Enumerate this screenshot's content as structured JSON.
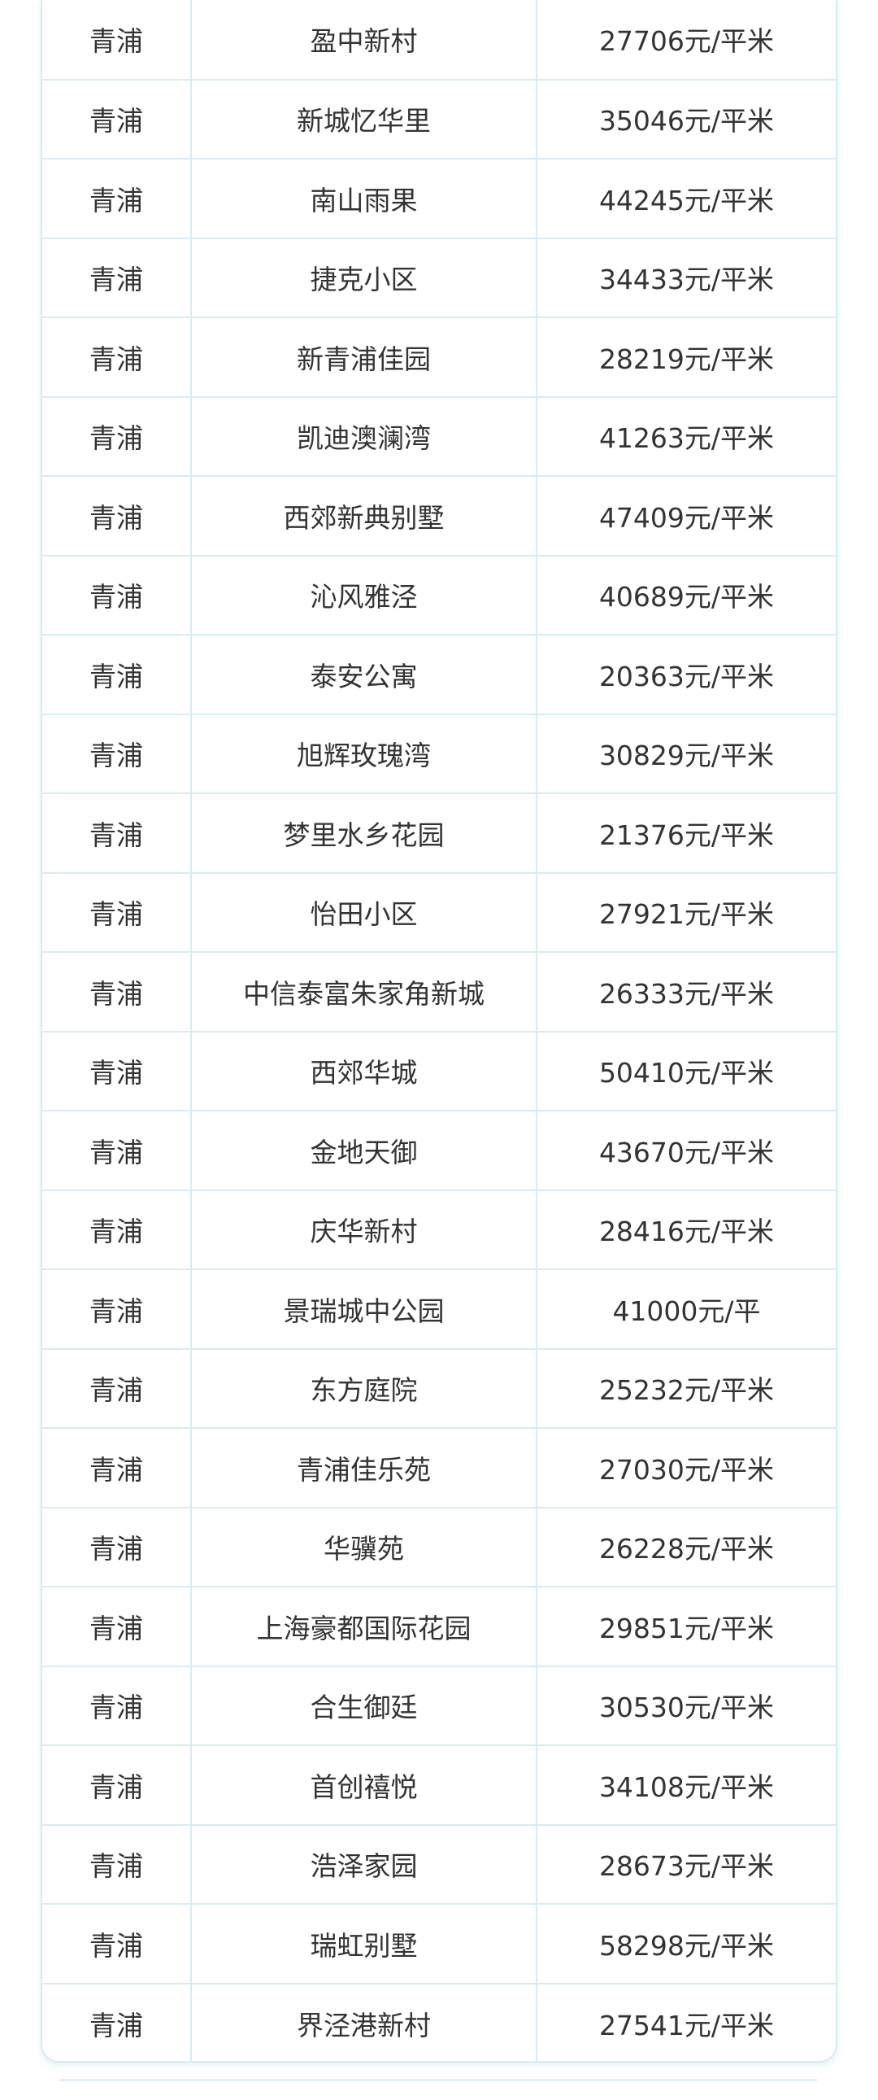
{
  "table": {
    "rows": [
      {
        "district": "青浦",
        "name": "盈中新村",
        "price": "27706元/平米"
      },
      {
        "district": "青浦",
        "name": "新城忆华里",
        "price": "35046元/平米"
      },
      {
        "district": "青浦",
        "name": "南山雨果",
        "price": "44245元/平米"
      },
      {
        "district": "青浦",
        "name": "捷克小区",
        "price": "34433元/平米"
      },
      {
        "district": "青浦",
        "name": "新青浦佳园",
        "price": "28219元/平米"
      },
      {
        "district": "青浦",
        "name": "凯迪澳澜湾",
        "price": "41263元/平米"
      },
      {
        "district": "青浦",
        "name": "西郊新典别墅",
        "price": "47409元/平米"
      },
      {
        "district": "青浦",
        "name": "沁风雅泾",
        "price": "40689元/平米"
      },
      {
        "district": "青浦",
        "name": "泰安公寓",
        "price": "20363元/平米"
      },
      {
        "district": "青浦",
        "name": "旭辉玫瑰湾",
        "price": "30829元/平米"
      },
      {
        "district": "青浦",
        "name": "梦里水乡花园",
        "price": "21376元/平米"
      },
      {
        "district": "青浦",
        "name": "怡田小区",
        "price": "27921元/平米"
      },
      {
        "district": "青浦",
        "name": "中信泰富朱家角新城",
        "price": "26333元/平米"
      },
      {
        "district": "青浦",
        "name": "西郊华城",
        "price": "50410元/平米"
      },
      {
        "district": "青浦",
        "name": "金地天御",
        "price": "43670元/平米"
      },
      {
        "district": "青浦",
        "name": "庆华新村",
        "price": "28416元/平米"
      },
      {
        "district": "青浦",
        "name": "景瑞城中公园",
        "price": "41000元/平"
      },
      {
        "district": "青浦",
        "name": "东方庭院",
        "price": "25232元/平米"
      },
      {
        "district": "青浦",
        "name": "青浦佳乐苑",
        "price": "27030元/平米"
      },
      {
        "district": "青浦",
        "name": "华骥苑",
        "price": "26228元/平米"
      },
      {
        "district": "青浦",
        "name": "上海豪都国际花园",
        "price": "29851元/平米"
      },
      {
        "district": "青浦",
        "name": "合生御廷",
        "price": "30530元/平米"
      },
      {
        "district": "青浦",
        "name": "首创禧悦",
        "price": "34108元/平米"
      },
      {
        "district": "青浦",
        "name": "浩泽家园",
        "price": "28673元/平米"
      },
      {
        "district": "青浦",
        "name": "瑞虹别墅",
        "price": "58298元/平米"
      },
      {
        "district": "青浦",
        "name": "界泾港新村",
        "price": "27541元/平米"
      }
    ]
  },
  "colors": {
    "border": "#d6ecf3",
    "text": "#333333"
  }
}
